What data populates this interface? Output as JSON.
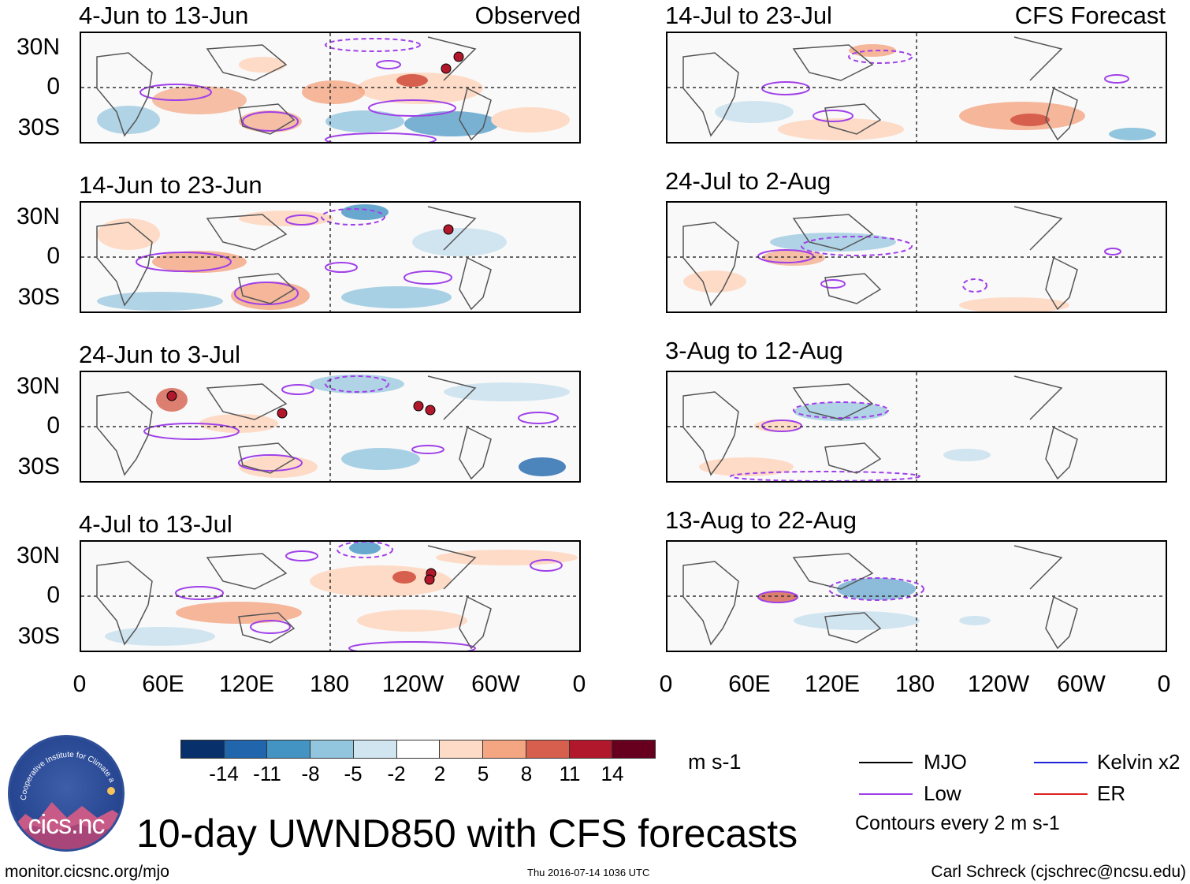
{
  "figure": {
    "title": "10-day UWND850 with CFS forecasts",
    "units": "m s-1",
    "contour_note": "Contours every 2 m s-1",
    "observed_label": "Observed",
    "forecast_label": "CFS Forecast"
  },
  "panels": {
    "observed": [
      {
        "period": "4-Jun to 13-Jun"
      },
      {
        "period": "14-Jun to 23-Jun"
      },
      {
        "period": "24-Jun to 3-Jul"
      },
      {
        "period": "4-Jul to 13-Jul"
      }
    ],
    "forecast": [
      {
        "period": "14-Jul to 23-Jul"
      },
      {
        "period": "24-Jul to 2-Aug"
      },
      {
        "period": "3-Aug to 12-Aug"
      },
      {
        "period": "13-Aug to 22-Aug"
      }
    ]
  },
  "axes": {
    "lat_ticks": [
      "30N",
      "0",
      "30S"
    ],
    "lon_ticks": [
      "0",
      "60E",
      "120E",
      "180",
      "120W",
      "60W",
      "0"
    ]
  },
  "colorbar": {
    "labels": [
      "-14",
      "-11",
      "-8",
      "-5",
      "-2",
      "2",
      "5",
      "8",
      "11",
      "14"
    ],
    "colors": [
      "#08306b",
      "#2166ac",
      "#4393c3",
      "#92c5de",
      "#d1e5f0",
      "#ffffff",
      "#fddbc7",
      "#f4a582",
      "#d6604d",
      "#b2182b",
      "#67001f"
    ]
  },
  "legend": [
    {
      "label": "MJO",
      "color": "#000000"
    },
    {
      "label": "Kelvin x2",
      "color": "#2222dd"
    },
    {
      "label": "Low",
      "color": "#a040e8"
    },
    {
      "label": "ER",
      "color": "#dd2222"
    }
  ],
  "logo": {
    "arc_text": "Cooperative Institute for Climate and Satellites",
    "name": "cics.nc"
  },
  "footer": {
    "url": "monitor.cicsnc.org/mjo",
    "timestamp": "Thu 2016-07-14 1036 UTC",
    "author": "Carl Schreck (cjschrec@ncsu.edu)"
  }
}
